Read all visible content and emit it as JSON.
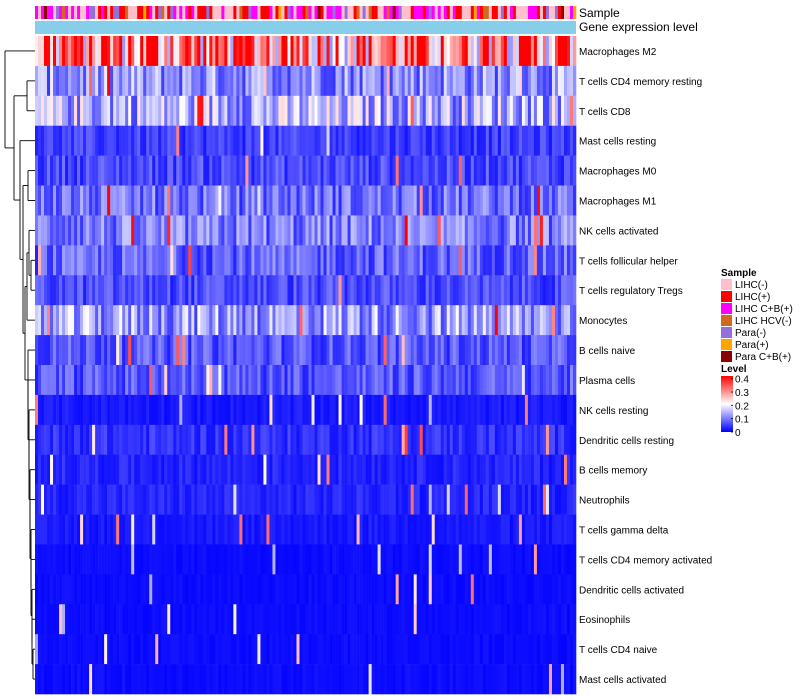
{
  "chart_data": {
    "type": "heatmap",
    "title": "",
    "annotation_tracks": [
      "Sample",
      "Gene expression level"
    ],
    "rows": [
      "Macrophages M2",
      "T cells CD4 memory resting",
      "T cells CD8",
      "Mast cells resting",
      "Macrophages M0",
      "Macrophages M1",
      "NK cells activated",
      "T cells follicular helper",
      "T cells regulatory  Tregs",
      "Monocytes",
      "B cells naive",
      "Plasma cells",
      "NK cells resting",
      "Dendritic cells resting",
      "B cells memory",
      "Neutrophils",
      "T cells gamma delta",
      "T cells CD4 memory activated",
      "Dendritic cells activated",
      "Eosinophils",
      "T cells CD4 naive",
      "Mast cells activated"
    ],
    "row_mean_levels": [
      0.33,
      0.12,
      0.15,
      0.05,
      0.06,
      0.09,
      0.1,
      0.08,
      0.06,
      0.13,
      0.07,
      0.07,
      0.02,
      0.04,
      0.03,
      0.03,
      0.02,
      0.01,
      0.01,
      0.01,
      0.01,
      0.01
    ],
    "sample_count": 180,
    "legend_sample": {
      "title": "Sample",
      "entries": [
        {
          "label": "LIHC(-)",
          "color": "#FFC0CB"
        },
        {
          "label": "LIHC(+)",
          "color": "#FF0000"
        },
        {
          "label": "LIHC C+B(+)",
          "color": "#FF00FF"
        },
        {
          "label": "LIHC HCV(-)",
          "color": "#D2691E"
        },
        {
          "label": "Para(-)",
          "color": "#9370DB"
        },
        {
          "label": "Para(+)",
          "color": "#FFA500"
        },
        {
          "label": "Para C+B(+)",
          "color": "#8B0000"
        }
      ]
    },
    "legend_level": {
      "title": "Level",
      "ticks": [
        "0.4",
        "0.3",
        "0.2",
        "0.1",
        "0"
      ],
      "tick_values": [
        0.4,
        0.3,
        0.2,
        0.1,
        0
      ],
      "range": [
        0,
        0.42
      ]
    },
    "colors": {
      "low": "#0000FF",
      "mid": "#FFFFFF",
      "high": "#FF0000",
      "expression_bar": "#87CEEB",
      "dendrogram": "#000000"
    }
  }
}
